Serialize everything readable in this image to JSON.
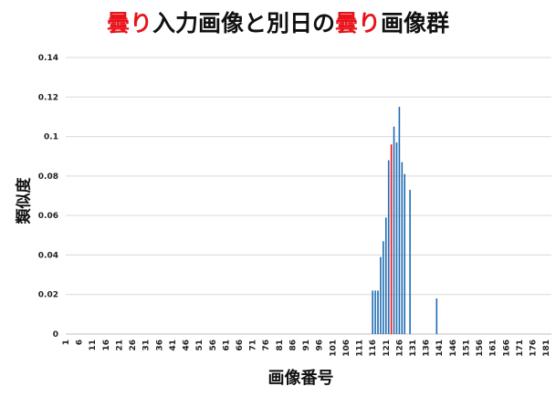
{
  "title": {
    "part1": "曇り",
    "part2": "入力画像と別日の",
    "part3": "曇り",
    "part4": "画像群"
  },
  "colors": {
    "accent": "#e8141b",
    "bar": "#1f6cb4",
    "highlight_bar": "#e8141b",
    "grid": "#d9d9d9"
  },
  "chart_data": {
    "type": "bar",
    "xlabel": "画像番号",
    "ylabel": "類似度",
    "ylim": [
      0,
      0.14
    ],
    "yticks": [
      "0",
      "0.02",
      "0.04",
      "0.06",
      "0.08",
      "0.1",
      "0.12",
      "0.14"
    ],
    "xticks": [
      "1",
      "6",
      "11",
      "16",
      "21",
      "26",
      "31",
      "36",
      "41",
      "46",
      "51",
      "56",
      "61",
      "66",
      "71",
      "76",
      "81",
      "86",
      "91",
      "96",
      "101",
      "106",
      "111",
      "116",
      "121",
      "126",
      "131",
      "136",
      "141",
      "146",
      "151",
      "156",
      "161",
      "166",
      "171",
      "176",
      "181"
    ],
    "x_range": [
      1,
      183
    ],
    "grid": "horizontal",
    "bars": [
      {
        "x": 116,
        "value": 0.022
      },
      {
        "x": 117,
        "value": 0.022
      },
      {
        "x": 118,
        "value": 0.022
      },
      {
        "x": 119,
        "value": 0.039
      },
      {
        "x": 120,
        "value": 0.047
      },
      {
        "x": 121,
        "value": 0.059
      },
      {
        "x": 122,
        "value": 0.088
      },
      {
        "x": 123,
        "value": 0.096,
        "highlight": true
      },
      {
        "x": 124,
        "value": 0.105
      },
      {
        "x": 125,
        "value": 0.097
      },
      {
        "x": 126,
        "value": 0.115
      },
      {
        "x": 127,
        "value": 0.087
      },
      {
        "x": 128,
        "value": 0.081
      },
      {
        "x": 130,
        "value": 0.073
      },
      {
        "x": 140,
        "value": 0.018
      }
    ]
  }
}
